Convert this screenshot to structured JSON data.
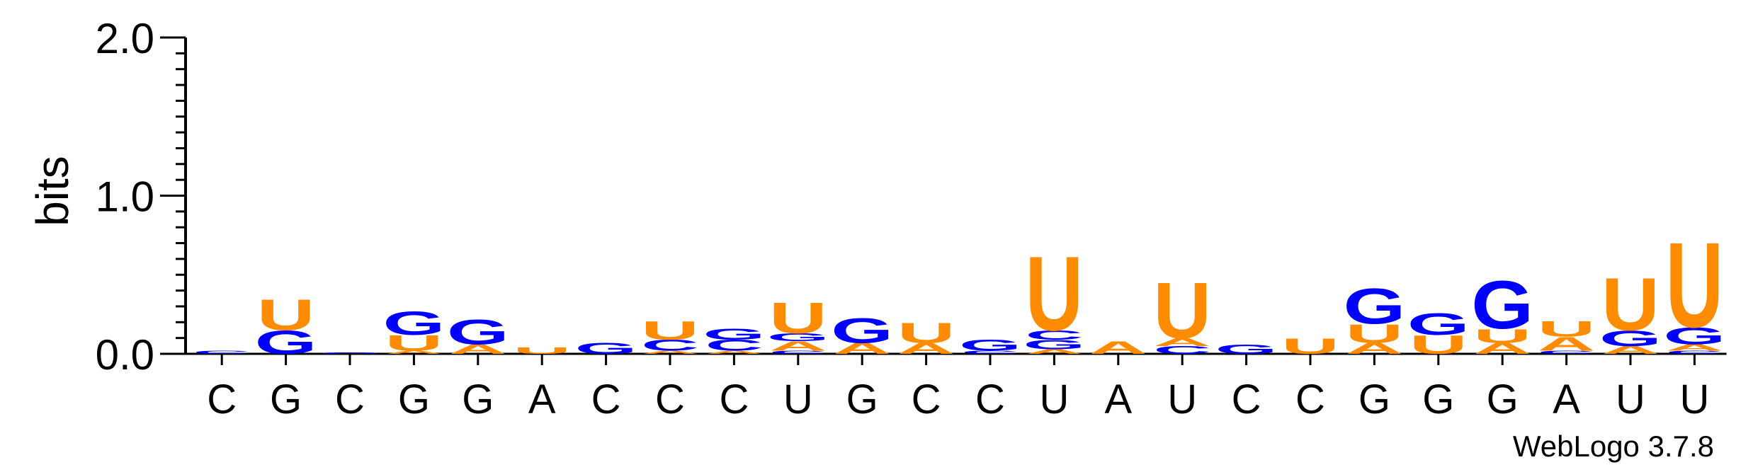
{
  "chart_data": {
    "type": "sequence-logo",
    "ylabel": "bits",
    "ylim": [
      0,
      2
    ],
    "y_ticks": [
      "0.0",
      "1.0",
      "2.0"
    ],
    "consensus": [
      "C",
      "G",
      "C",
      "G",
      "G",
      "A",
      "C",
      "C",
      "C",
      "U",
      "G",
      "C",
      "C",
      "U",
      "A",
      "U",
      "C",
      "C",
      "G",
      "G",
      "G",
      "A",
      "U",
      "U"
    ],
    "colors": {
      "U": "#ff8c00",
      "A": "#ff8c00",
      "G": "#0000ff",
      "C": "#0000ff"
    },
    "columns": [
      {
        "stack": [
          [
            "C",
            0.02
          ]
        ]
      },
      {
        "stack": [
          [
            "G",
            0.15
          ],
          [
            "U",
            0.2
          ]
        ]
      },
      {
        "stack": [
          [
            "G",
            0.01
          ]
        ]
      },
      {
        "stack": [
          [
            "A",
            0.02
          ],
          [
            "U",
            0.1
          ],
          [
            "G",
            0.15
          ]
        ]
      },
      {
        "stack": [
          [
            "A",
            0.06
          ],
          [
            "G",
            0.16
          ]
        ]
      },
      {
        "stack": [
          [
            "U",
            0.04
          ]
        ]
      },
      {
        "stack": [
          [
            "G",
            0.07
          ]
        ]
      },
      {
        "stack": [
          [
            "A",
            0.02
          ],
          [
            "C",
            0.07
          ],
          [
            "U",
            0.12
          ]
        ]
      },
      {
        "stack": [
          [
            "A",
            0.02
          ],
          [
            "C",
            0.07
          ],
          [
            "G",
            0.07
          ]
        ]
      },
      {
        "stack": [
          [
            "C",
            0.02
          ],
          [
            "A",
            0.06
          ],
          [
            "G",
            0.05
          ],
          [
            "U",
            0.2
          ]
        ]
      },
      {
        "stack": [
          [
            "A",
            0.07
          ],
          [
            "G",
            0.16
          ]
        ]
      },
      {
        "stack": [
          [
            "A",
            0.07
          ],
          [
            "U",
            0.13
          ]
        ]
      },
      {
        "stack": [
          [
            "C",
            0.02
          ],
          [
            "G",
            0.07
          ]
        ]
      },
      {
        "stack": [
          [
            "A",
            0.03
          ],
          [
            "G",
            0.06
          ],
          [
            "C",
            0.06
          ],
          [
            "U",
            0.48
          ]
        ]
      },
      {
        "stack": [
          [
            "A",
            0.08
          ]
        ]
      },
      {
        "stack": [
          [
            "C",
            0.05
          ],
          [
            "A",
            0.05
          ],
          [
            "U",
            0.36
          ]
        ]
      },
      {
        "stack": [
          [
            "G",
            0.06
          ]
        ]
      },
      {
        "stack": [
          [
            "U",
            0.1
          ]
        ]
      },
      {
        "stack": [
          [
            "A",
            0.07
          ],
          [
            "U",
            0.12
          ],
          [
            "G",
            0.23
          ]
        ]
      },
      {
        "stack": [
          [
            "U",
            0.12
          ],
          [
            "G",
            0.14
          ]
        ]
      },
      {
        "stack": [
          [
            "A",
            0.07
          ],
          [
            "U",
            0.09
          ],
          [
            "G",
            0.31
          ]
        ]
      },
      {
        "stack": [
          [
            "C",
            0.02
          ],
          [
            "A",
            0.09
          ],
          [
            "U",
            0.1
          ]
        ]
      },
      {
        "stack": [
          [
            "A",
            0.05
          ],
          [
            "G",
            0.1
          ],
          [
            "U",
            0.34
          ]
        ]
      },
      {
        "stack": [
          [
            "C",
            0.02
          ],
          [
            "A",
            0.04
          ],
          [
            "G",
            0.11
          ],
          [
            "U",
            0.55
          ]
        ]
      }
    ]
  },
  "footer": {
    "credit": "WebLogo 3.7.8"
  }
}
